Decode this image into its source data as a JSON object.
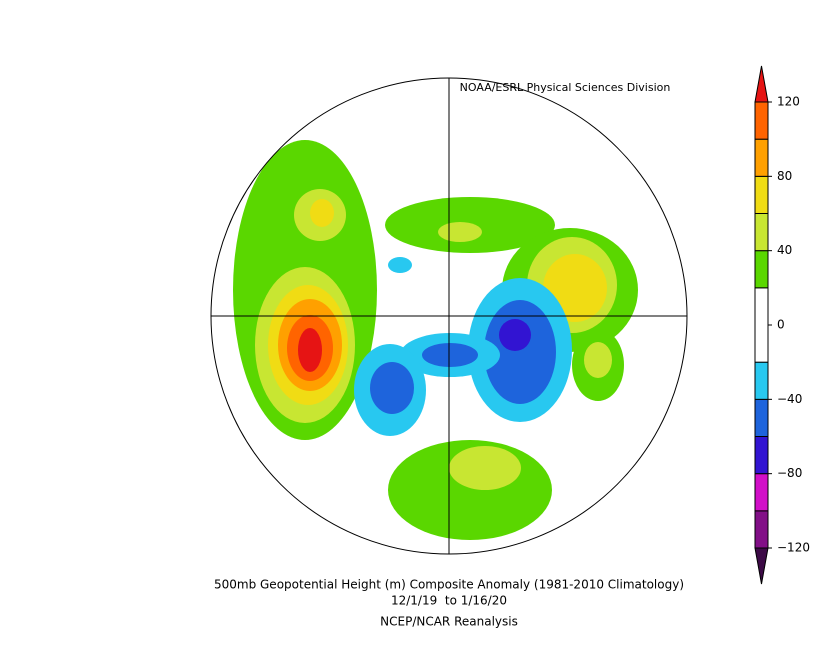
{
  "header": {
    "credit": "NOAA/ESRL Physical Sciences Division"
  },
  "footer": {
    "title": "500mb Geopotential Height (m) Composite Anomaly (1981-2010 Climatology)",
    "dates": "12/1/19  to 1/16/20",
    "source": "NCEP/NCAR Reanalysis"
  },
  "colorbar": {
    "bounds": [
      -120,
      -100,
      -80,
      -60,
      -40,
      -20,
      20,
      40,
      60,
      80,
      100,
      120
    ],
    "colors": [
      "#3c0a46",
      "#820f87",
      "#d20fc8",
      "#3214d2",
      "#1e64dc",
      "#28c8f0",
      "#ffffff",
      "#5ad700",
      "#c8e632",
      "#f0dc14",
      "#ffa000",
      "#ff6400",
      "#e61414"
    ],
    "ticks": [
      {
        "value": -120,
        "label": "−120"
      },
      {
        "value": -80,
        "label": "−80"
      },
      {
        "value": -40,
        "label": "−40"
      },
      0,
      40,
      80,
      120
    ]
  }
}
